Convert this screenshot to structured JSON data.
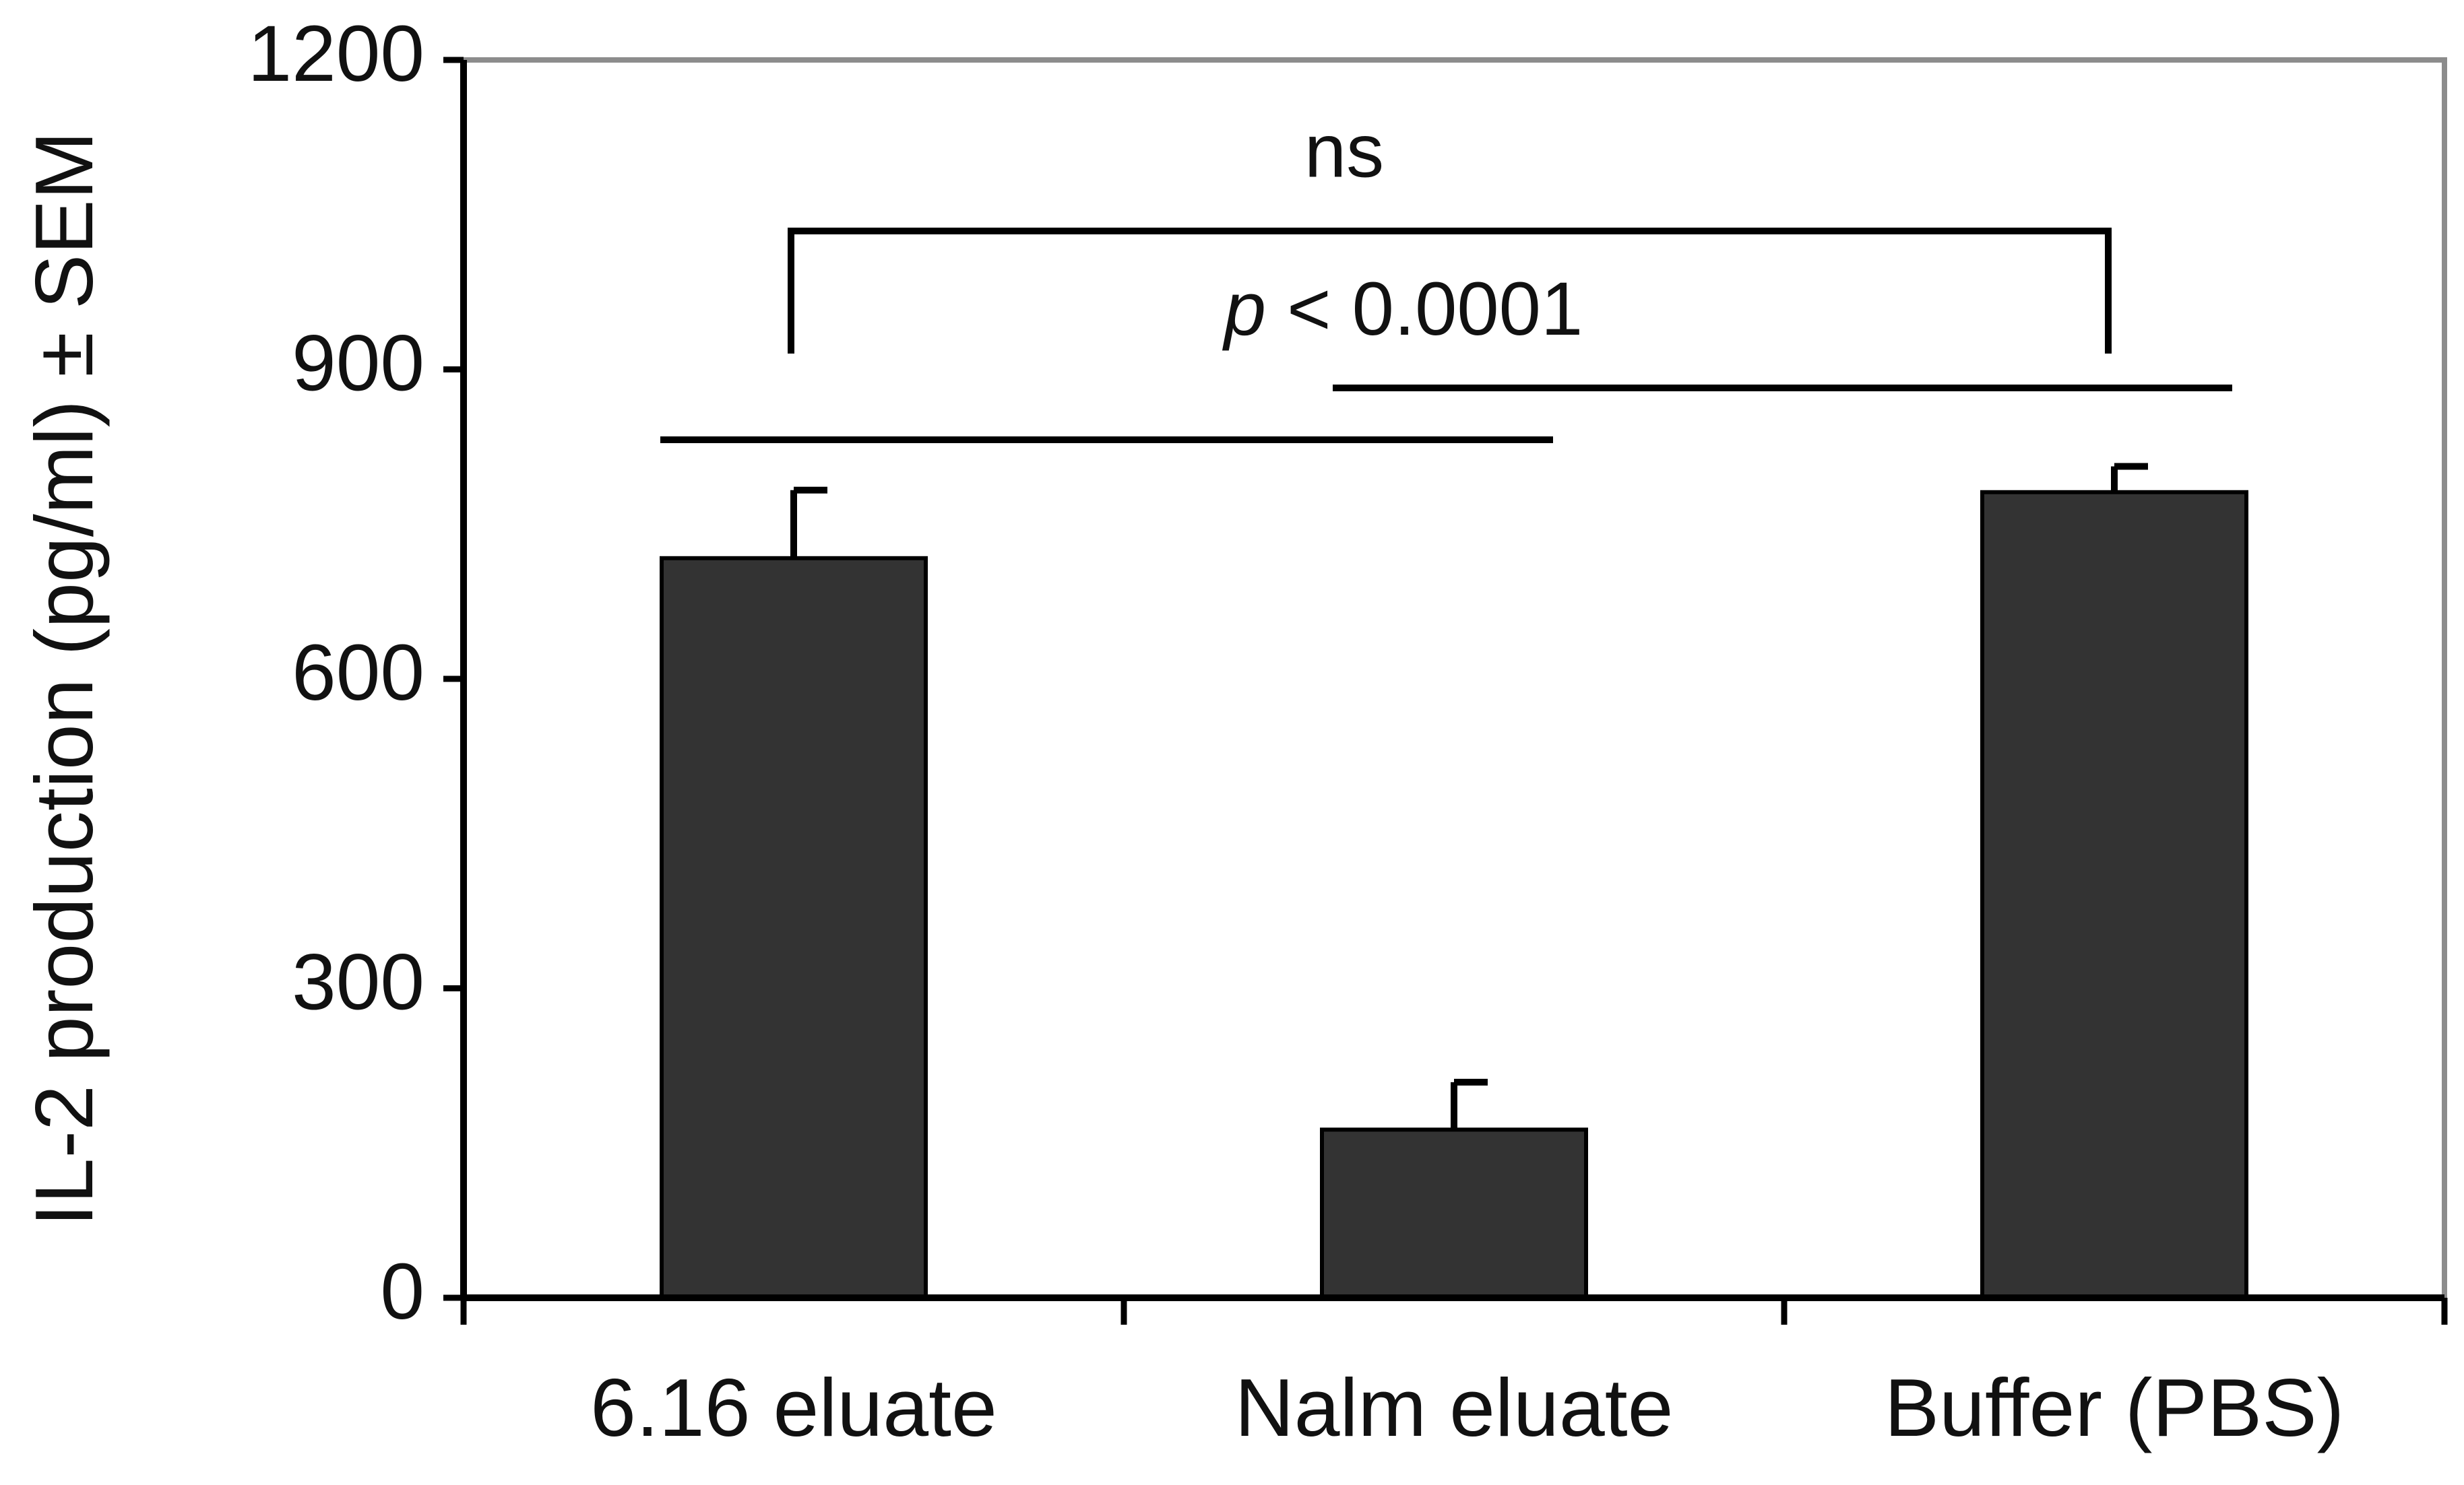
{
  "chart_data": {
    "type": "bar",
    "y_label": "IL-2 production (pg/ml) ± SEM",
    "categories": [
      "6.16 eluate",
      "Nalm eluate",
      "Buffer (PBS)"
    ],
    "values": [
      717,
      163,
      781
    ],
    "errors": [
      66,
      46,
      25
    ],
    "color": "#333333",
    "ylim": [
      0,
      1200
    ],
    "yticks": [
      0,
      300,
      600,
      900,
      1200
    ],
    "annotations": {
      "ns": "ns",
      "p_symbol": "p",
      "p_text": "< 0.0001"
    }
  }
}
